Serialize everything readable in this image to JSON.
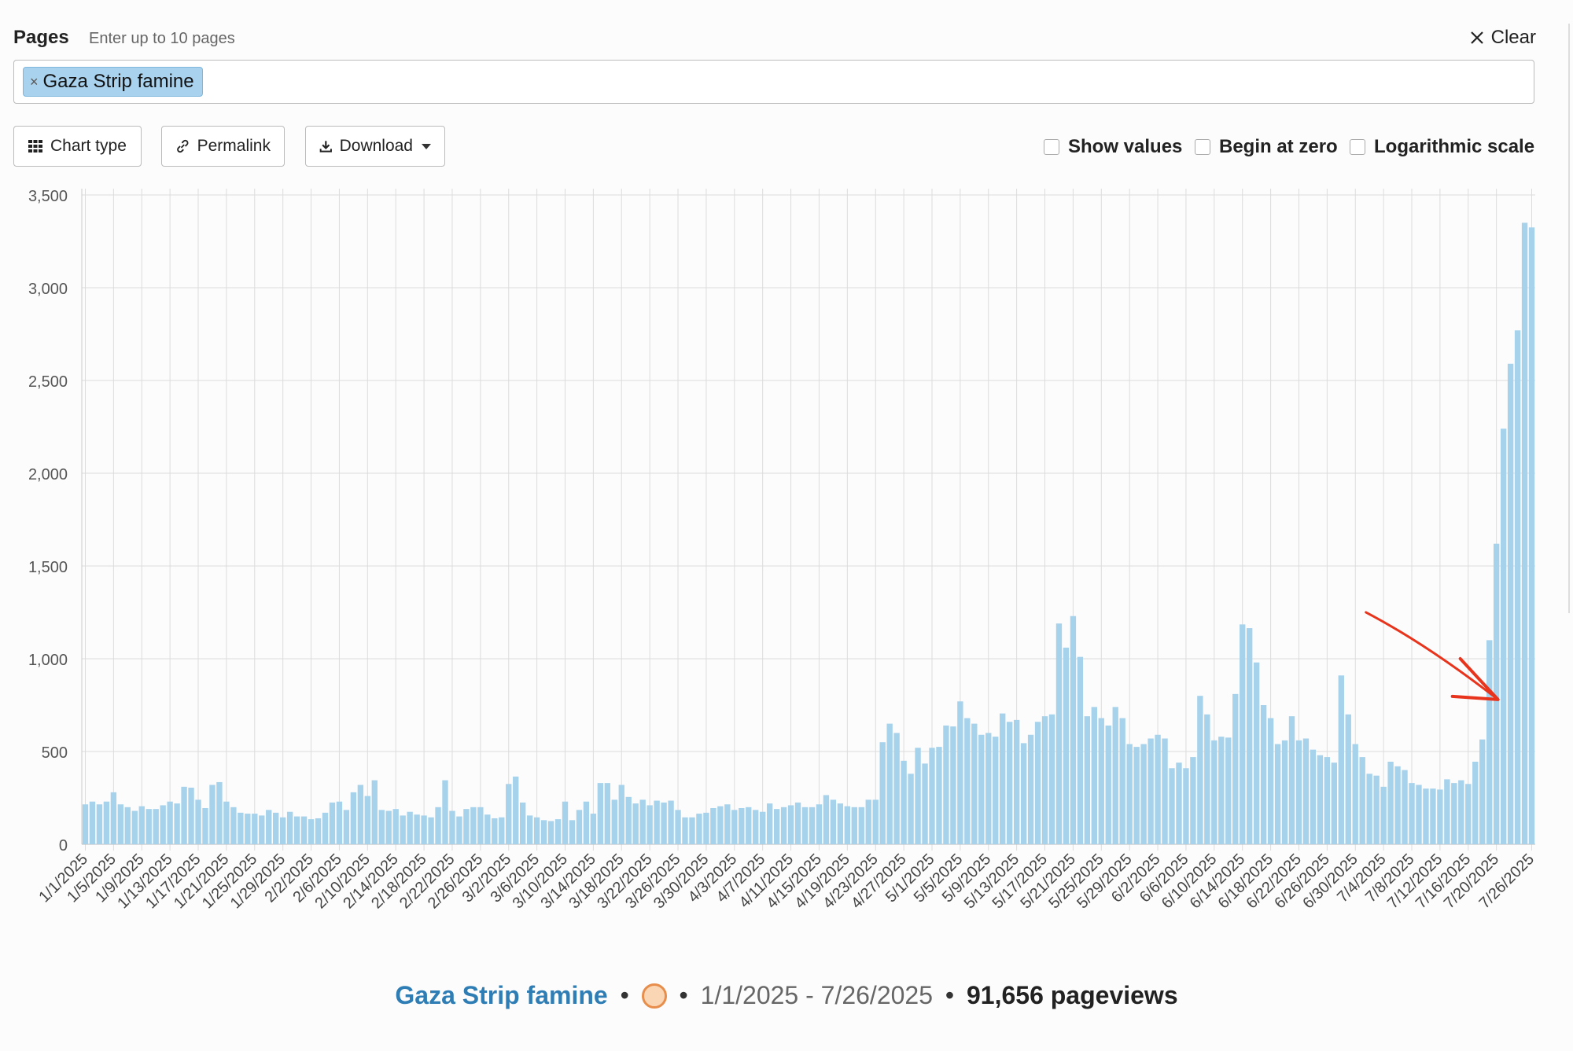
{
  "header": {
    "pages_label": "Pages",
    "pages_hint": "Enter up to 10 pages",
    "clear_label": "Clear"
  },
  "page_input": {
    "tags": [
      "Gaza Strip famine"
    ]
  },
  "toolbar": {
    "chart_type_label": "Chart type",
    "permalink_label": "Permalink",
    "download_label": "Download",
    "options": {
      "show_values": {
        "label": "Show values",
        "checked": false
      },
      "begin_at_zero": {
        "label": "Begin at zero",
        "checked": false
      },
      "logarithmic_scale": {
        "label": "Logarithmic scale",
        "checked": false
      }
    }
  },
  "colors": {
    "bar": "#a7d2eb",
    "grid": "#dcdcdc",
    "annotation_arrow": "#e8341c",
    "series_link": "#2e7db5"
  },
  "chart_data": {
    "type": "bar",
    "series": [
      {
        "name": "Gaza Strip famine",
        "x_start": "1/1/2025",
        "x_end": "7/26/2025",
        "values": [
          215,
          230,
          215,
          230,
          280,
          215,
          200,
          180,
          205,
          190,
          190,
          210,
          230,
          220,
          310,
          305,
          240,
          195,
          320,
          335,
          230,
          200,
          170,
          165,
          165,
          155,
          185,
          170,
          145,
          175,
          150,
          150,
          135,
          140,
          170,
          225,
          230,
          185,
          280,
          320,
          260,
          345,
          185,
          180,
          190,
          155,
          175,
          160,
          155,
          145,
          200,
          345,
          180,
          150,
          190,
          200,
          200,
          160,
          140,
          145,
          325,
          365,
          225,
          155,
          145,
          130,
          125,
          135,
          230,
          130,
          185,
          230,
          165,
          330,
          330,
          240,
          320,
          255,
          220,
          240,
          210,
          235,
          225,
          235,
          185,
          145,
          145,
          165,
          170,
          195,
          205,
          215,
          185,
          195,
          200,
          185,
          175,
          220,
          190,
          200,
          210,
          225,
          200,
          200,
          215,
          265,
          240,
          220,
          205,
          200,
          200,
          240,
          240,
          550,
          650,
          600,
          450,
          380,
          520,
          435,
          520,
          525,
          640,
          635,
          770,
          680,
          650,
          590,
          600,
          580,
          705,
          660,
          670,
          545,
          590,
          660,
          690,
          700,
          1190,
          1060,
          1230,
          1010,
          690,
          740,
          680,
          640,
          740,
          680,
          540,
          525,
          540,
          570,
          590,
          570,
          410,
          440,
          410,
          470,
          800,
          700,
          560,
          580,
          575,
          810,
          1185,
          1165,
          980,
          750,
          680,
          540,
          560,
          690,
          560,
          570,
          510,
          480,
          470,
          440,
          910,
          700,
          540,
          470,
          380,
          370,
          310,
          445,
          420,
          400,
          330,
          320,
          300,
          300,
          295,
          350,
          330,
          345,
          325,
          445,
          565,
          1100,
          1620,
          2240,
          2590,
          2770,
          3350,
          3325
        ],
        "total_pageviews_label": "91,656"
      }
    ],
    "x_tick_labels": [
      "1/1/2025",
      "1/5/2025",
      "1/9/2025",
      "1/13/2025",
      "1/17/2025",
      "1/21/2025",
      "1/25/2025",
      "1/29/2025",
      "2/2/2025",
      "2/6/2025",
      "2/10/2025",
      "2/14/2025",
      "2/18/2025",
      "2/22/2025",
      "2/26/2025",
      "3/2/2025",
      "3/6/2025",
      "3/10/2025",
      "3/14/2025",
      "3/18/2025",
      "3/22/2025",
      "3/26/2025",
      "3/30/2025",
      "4/3/2025",
      "4/7/2025",
      "4/11/2025",
      "4/15/2025",
      "4/19/2025",
      "4/23/2025",
      "4/27/2025",
      "5/1/2025",
      "5/5/2025",
      "5/9/2025",
      "5/13/2025",
      "5/17/2025",
      "5/21/2025",
      "5/25/2025",
      "5/29/2025",
      "6/2/2025",
      "6/6/2025",
      "6/10/2025",
      "6/14/2025",
      "6/18/2025",
      "6/22/2025",
      "6/26/2025",
      "6/30/2025",
      "7/4/2025",
      "7/8/2025",
      "7/12/2025",
      "7/16/2025",
      "7/20/2025",
      "7/26/2025"
    ],
    "y_tick_labels": [
      "0",
      "500",
      "1,000",
      "1,500",
      "2,000",
      "2,500",
      "3,000",
      "3,500"
    ],
    "y_ticks": [
      0,
      500,
      1000,
      1500,
      2000,
      2500,
      3000,
      3500
    ],
    "ylim": [
      0,
      3500
    ],
    "grid": true,
    "annotation": {
      "type": "arrow",
      "color": "#e8341c",
      "points_to_date": "7/20/2025"
    }
  },
  "footer": {
    "page_name": "Gaza Strip famine",
    "date_range": "1/1/2025 - 7/26/2025",
    "pageviews": "91,656",
    "pageviews_label": "pageviews"
  }
}
